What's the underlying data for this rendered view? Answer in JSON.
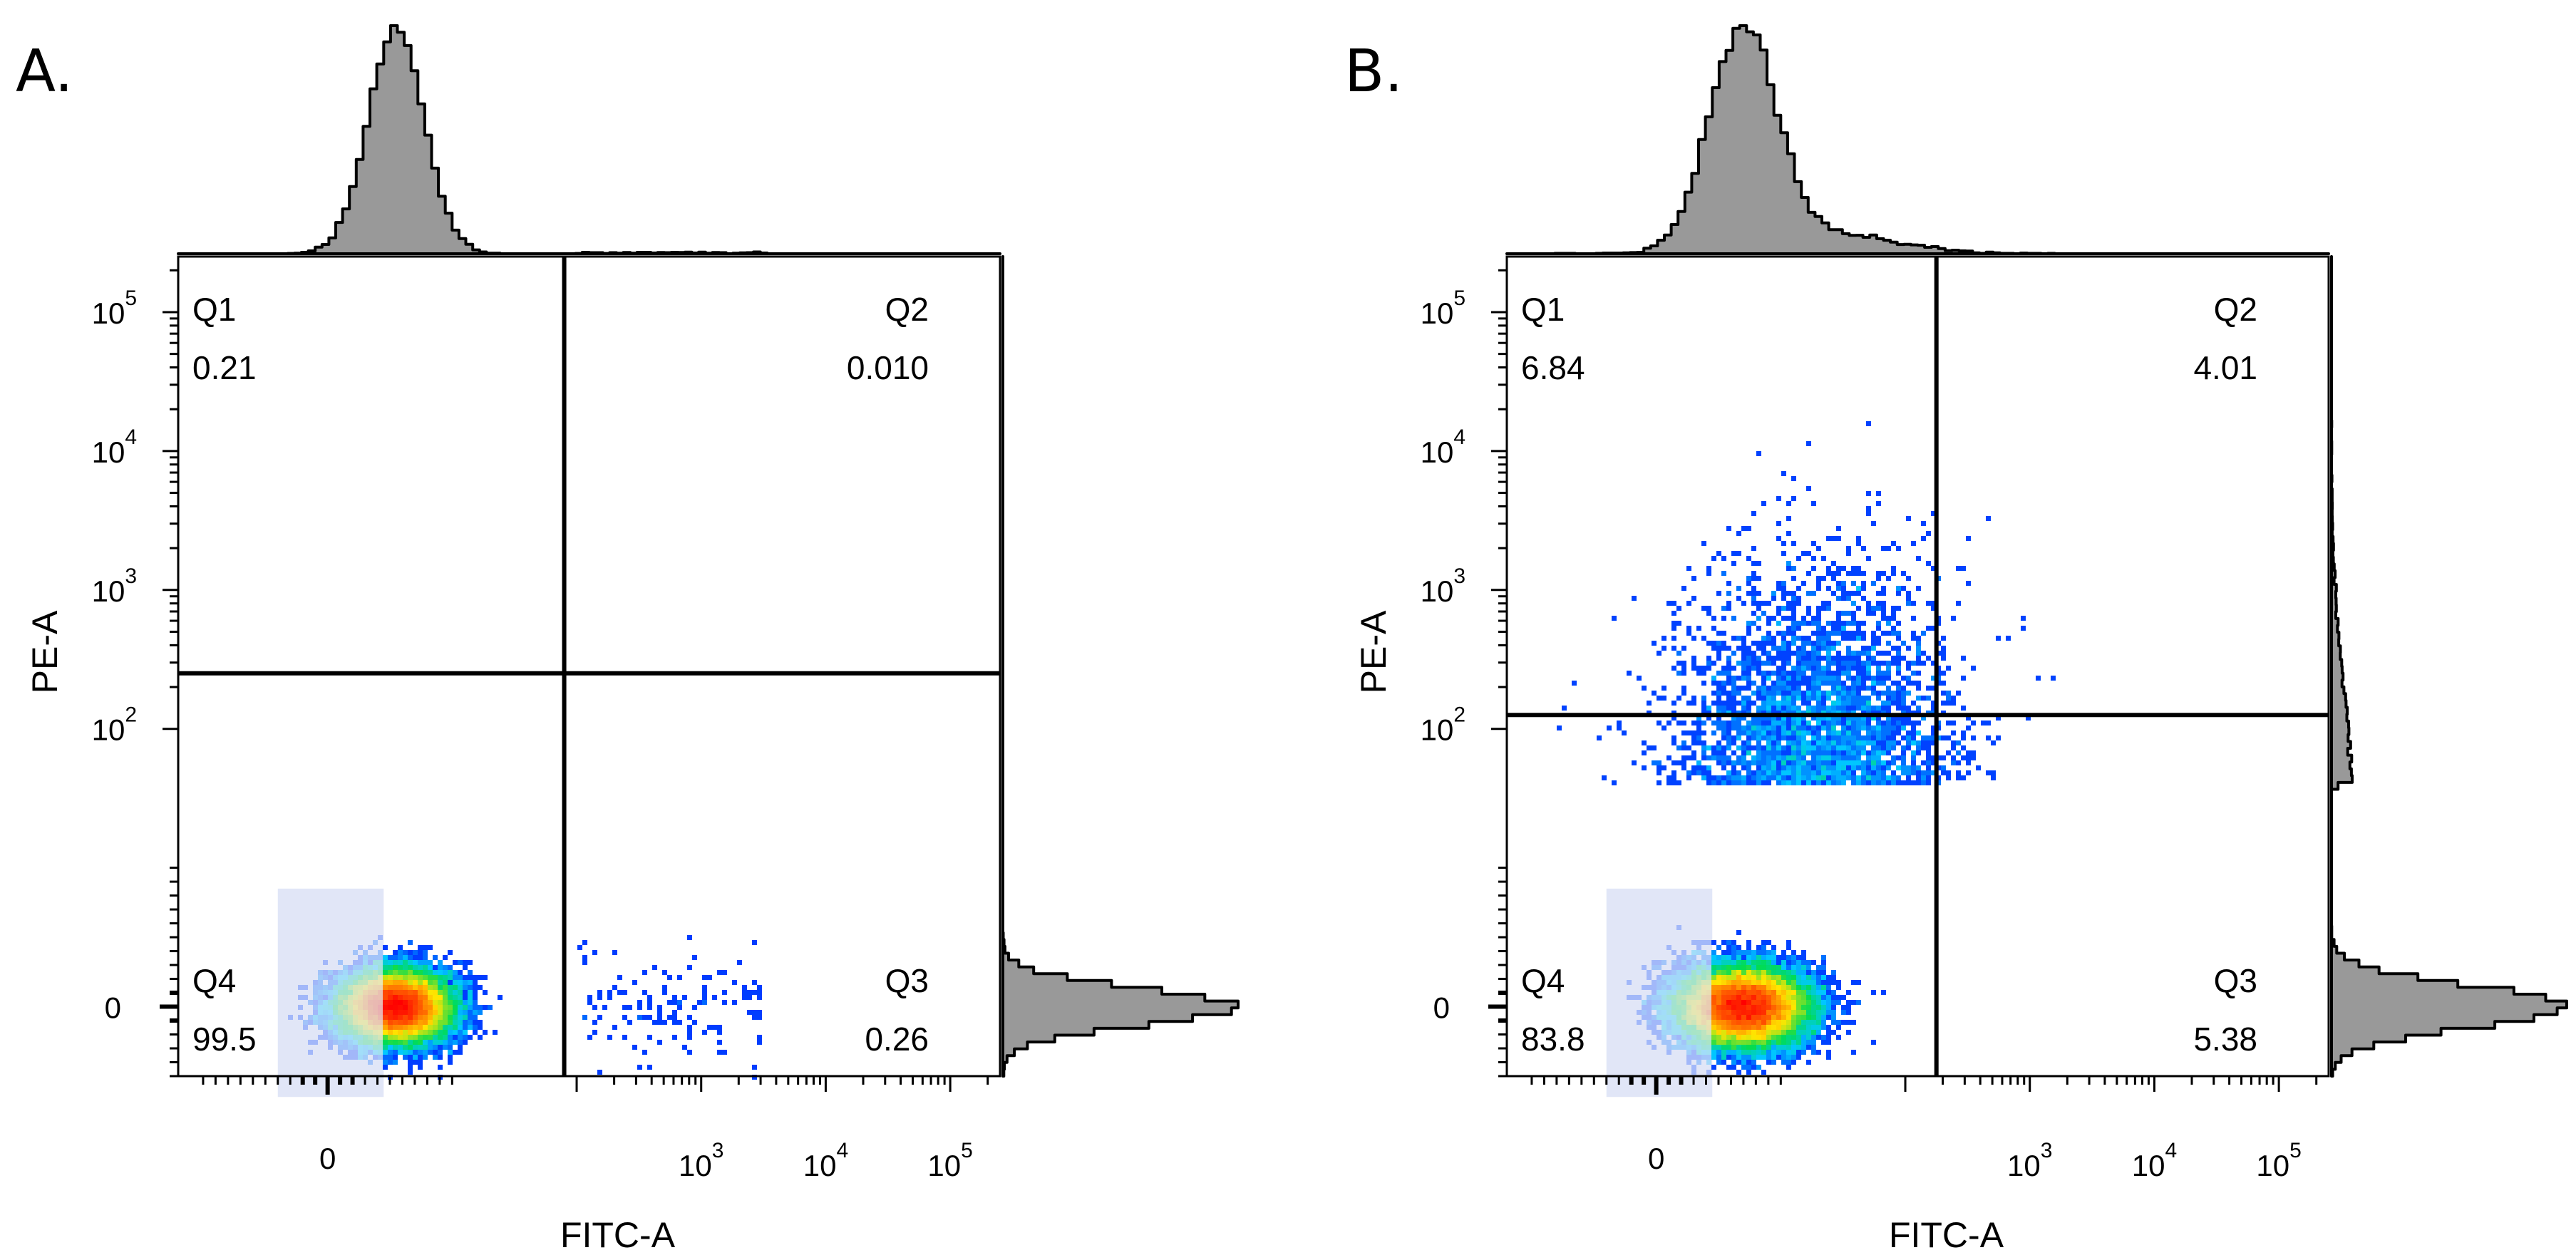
{
  "chart_data": [
    {
      "type": "scatter",
      "subtype": "flow-cytometry-pseudocolor-quadrant",
      "panel_label": "A.",
      "xlabel": "FITC-A",
      "ylabel": "PE-A",
      "x_ticks": [
        {
          "value": 0,
          "label": "0",
          "sup": ""
        },
        {
          "value": 3,
          "label": "10",
          "sup": "3"
        },
        {
          "value": 4,
          "label": "10",
          "sup": "4"
        },
        {
          "value": 5,
          "label": "10",
          "sup": "5"
        }
      ],
      "y_ticks": [
        {
          "value": 0,
          "label": "0",
          "sup": ""
        },
        {
          "value": 2,
          "label": "10",
          "sup": "2"
        },
        {
          "value": 3,
          "label": "10",
          "sup": "3"
        },
        {
          "value": 4,
          "label": "10",
          "sup": "4"
        },
        {
          "value": 5,
          "label": "10",
          "sup": "5"
        }
      ],
      "gate": {
        "x": 1.9,
        "y": 2.4
      },
      "quadrants": [
        {
          "name": "Q1",
          "value": "0.21",
          "position": "top-left"
        },
        {
          "name": "Q2",
          "value": "0.010",
          "position": "top-right"
        },
        {
          "name": "Q3",
          "value": "0.26",
          "position": "bottom-right"
        },
        {
          "name": "Q4",
          "value": "99.5",
          "position": "bottom-left"
        }
      ],
      "population": {
        "center_x": 0.55,
        "center_y": 0.0,
        "spread_x": 0.38,
        "spread_y": 0.22,
        "skew_up": 0.0,
        "tail_fraction": 0.005
      }
    },
    {
      "type": "scatter",
      "subtype": "flow-cytometry-pseudocolor-quadrant",
      "panel_label": "B.",
      "xlabel": "FITC-A",
      "ylabel": "PE-A",
      "x_ticks": [
        {
          "value": 0,
          "label": "0",
          "sup": ""
        },
        {
          "value": 3,
          "label": "10",
          "sup": "3"
        },
        {
          "value": 4,
          "label": "10",
          "sup": "4"
        },
        {
          "value": 5,
          "label": "10",
          "sup": "5"
        }
      ],
      "y_ticks": [
        {
          "value": 0,
          "label": "0",
          "sup": ""
        },
        {
          "value": 2,
          "label": "10",
          "sup": "2"
        },
        {
          "value": 3,
          "label": "10",
          "sup": "3"
        },
        {
          "value": 4,
          "label": "10",
          "sup": "4"
        },
        {
          "value": 5,
          "label": "10",
          "sup": "5"
        }
      ],
      "gate": {
        "x": 2.25,
        "y": 2.1
      },
      "quadrants": [
        {
          "name": "Q1",
          "value": "6.84",
          "position": "top-left"
        },
        {
          "name": "Q2",
          "value": "4.01",
          "position": "top-right"
        },
        {
          "name": "Q3",
          "value": "5.38",
          "position": "bottom-right"
        },
        {
          "name": "Q4",
          "value": "83.8",
          "position": "bottom-left"
        }
      ],
      "population": {
        "center_x": 0.7,
        "center_y": 0.0,
        "spread_x": 0.45,
        "spread_y": 0.25,
        "skew_up": 1.0,
        "tail_fraction": 0.12
      }
    }
  ],
  "colors": {
    "axis": "#000000",
    "histogram_fill": "#999999",
    "histogram_line": "#000000",
    "density_low": "#0000ff",
    "density_high": "#ff0000",
    "backgate_tint": "#c8d2f0"
  }
}
